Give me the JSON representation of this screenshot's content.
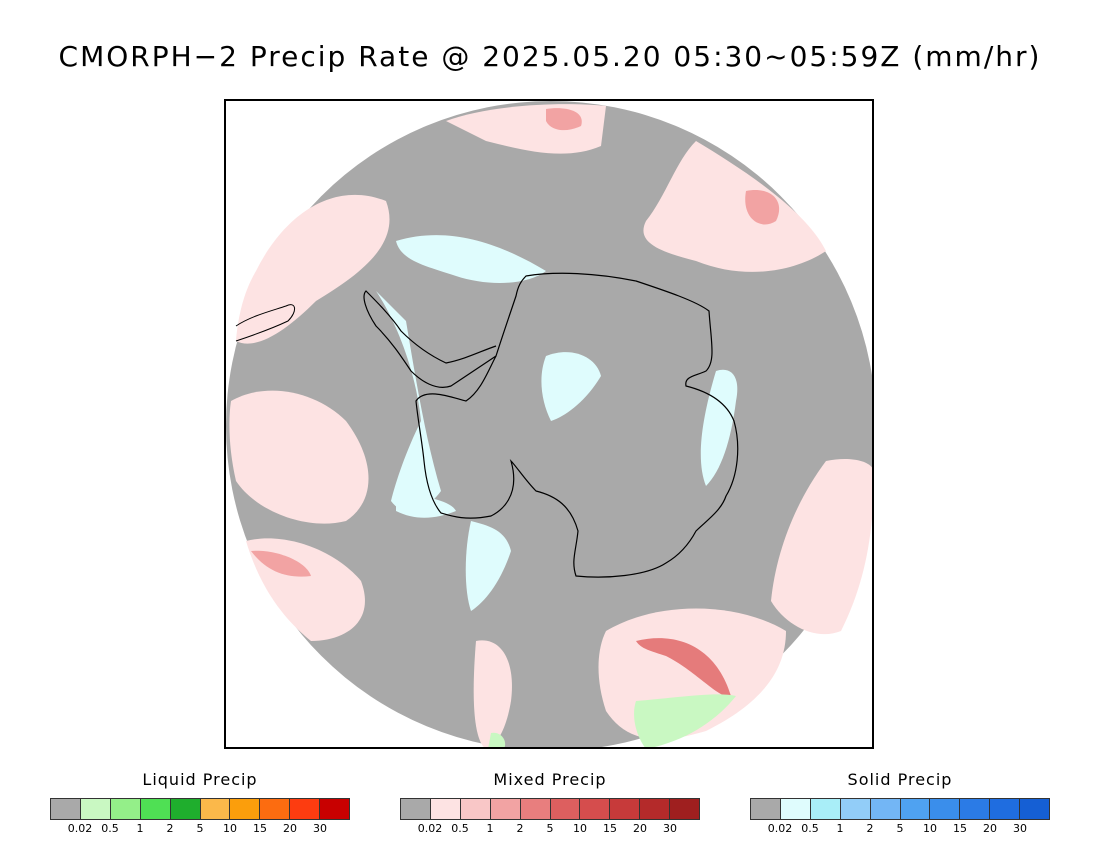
{
  "title": "CMORPH−2 Precip Rate @ 2025.05.20 05:30~05:59Z (mm/hr)",
  "map": {
    "region": "Antarctica / Southern Hemisphere polar view",
    "colors": {
      "no_precip": "#a9a9a9",
      "continent_outline": "#000000",
      "mixed_light": "#fde3e3",
      "mixed_medium": "#f6b7b7",
      "mixed_strong": "#e57b7b",
      "solid_light": "#dffcfd",
      "liquid_light": "#c9f8c2"
    }
  },
  "legends": [
    {
      "title": "Liquid Precip",
      "colors": [
        "#a9a9a9",
        "#c9f8c2",
        "#94ef89",
        "#4fe054",
        "#1fae2d",
        "#fbb84a",
        "#fb9e0c",
        "#fc6c10",
        "#fd3c10",
        "#c80000"
      ],
      "ticks": [
        "0.02",
        "0.5",
        "1",
        "2",
        "5",
        "10",
        "15",
        "20",
        "30"
      ]
    },
    {
      "title": "Mixed Precip",
      "colors": [
        "#a9a9a9",
        "#fde3e3",
        "#f9c7c7",
        "#f2a3a3",
        "#e87e7e",
        "#dd5f5f",
        "#d54d4d",
        "#c73a3a",
        "#b42a2a",
        "#9f1f1f"
      ],
      "ticks": [
        "0.02",
        "0.5",
        "1",
        "2",
        "5",
        "10",
        "15",
        "20",
        "30"
      ]
    },
    {
      "title": "Solid Precip",
      "colors": [
        "#a9a9a9",
        "#dffcfd",
        "#a9eef8",
        "#92cdf8",
        "#73b6f5",
        "#4fa2f1",
        "#3a8eeb",
        "#2b7be6",
        "#1f6de0",
        "#155fd4"
      ],
      "ticks": [
        "0.02",
        "0.5",
        "1",
        "2",
        "5",
        "10",
        "15",
        "20",
        "30"
      ]
    }
  ]
}
